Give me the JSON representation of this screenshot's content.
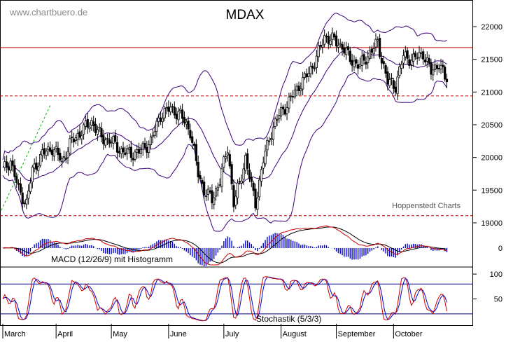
{
  "header": {
    "site": "www.chartbuero.de",
    "title": "MDAX",
    "source": "Hoppenstedt Charts"
  },
  "chart_data": [
    {
      "panel": "price",
      "type": "candlestick",
      "title": "MDAX",
      "ylim": [
        18800,
        22300
      ],
      "yticks": [
        19000,
        19500,
        20000,
        20500,
        21000,
        21500,
        22000
      ],
      "x_months": [
        "March",
        "April",
        "May",
        "June",
        "July",
        "August",
        "September",
        "October"
      ],
      "reference_lines": [
        {
          "value": 21680,
          "style": "solid",
          "color": "#cc0000"
        },
        {
          "value": 20940,
          "style": "dashed",
          "color": "#cc0000"
        },
        {
          "value": 19110,
          "style": "dashed",
          "color": "#cc0000"
        }
      ],
      "overlays": [
        "Bollinger Bands (upper, middle, lower)",
        "trendline"
      ],
      "anchors": [
        [
          0,
          19800
        ],
        [
          4,
          19950
        ],
        [
          8,
          19500
        ],
        [
          12,
          19300
        ],
        [
          15,
          19800
        ],
        [
          20,
          20050
        ],
        [
          25,
          20150
        ],
        [
          30,
          19950
        ],
        [
          35,
          20250
        ],
        [
          40,
          20400
        ],
        [
          45,
          20550
        ],
        [
          50,
          20300
        ],
        [
          55,
          20250
        ],
        [
          60,
          20100
        ],
        [
          65,
          20050
        ],
        [
          70,
          20100
        ],
        [
          75,
          20250
        ],
        [
          80,
          20650
        ],
        [
          85,
          20750
        ],
        [
          90,
          20650
        ],
        [
          95,
          20400
        ],
        [
          99,
          19750
        ],
        [
          102,
          19500
        ],
        [
          106,
          19350
        ],
        [
          110,
          19650
        ],
        [
          114,
          20150
        ],
        [
          117,
          19300
        ],
        [
          120,
          19600
        ],
        [
          123,
          20000
        ],
        [
          126,
          19550
        ],
        [
          128,
          19300
        ],
        [
          132,
          19950
        ],
        [
          136,
          20400
        ],
        [
          140,
          20650
        ],
        [
          145,
          20850
        ],
        [
          150,
          21100
        ],
        [
          153,
          21200
        ],
        [
          157,
          21400
        ],
        [
          160,
          21600
        ],
        [
          163,
          21850
        ],
        [
          167,
          21800
        ],
        [
          172,
          21700
        ],
        [
          176,
          21500
        ],
        [
          181,
          21400
        ],
        [
          186,
          21600
        ],
        [
          190,
          21750
        ],
        [
          195,
          21150
        ],
        [
          199,
          21100
        ],
        [
          203,
          21550
        ],
        [
          208,
          21500
        ],
        [
          213,
          21600
        ],
        [
          217,
          21300
        ],
        [
          221,
          21450
        ],
        [
          224,
          21200
        ]
      ]
    },
    {
      "panel": "macd",
      "type": "line",
      "label": "MACD (12/26/9) mit Histogramm",
      "yticks": [
        0
      ],
      "series": [
        {
          "name": "MACD",
          "color": "#cc0000"
        },
        {
          "name": "Signal",
          "color": "#000000"
        },
        {
          "name": "Histogramm",
          "color": "#0000cc"
        }
      ]
    },
    {
      "panel": "stochastic",
      "type": "line",
      "label": "Stochastik (5/3/3)",
      "ylim": [
        0,
        110
      ],
      "yticks": [
        50,
        100
      ],
      "reference_lines": [
        {
          "value": 80
        },
        {
          "value": 20
        }
      ],
      "series": [
        {
          "name": "%K",
          "color": "#cc0000"
        },
        {
          "name": "%D",
          "color": "#0000cc"
        }
      ]
    }
  ]
}
